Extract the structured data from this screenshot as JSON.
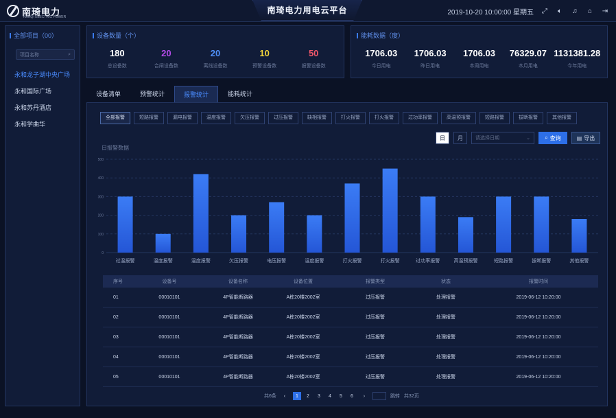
{
  "header": {
    "logo_text": "南琦电力",
    "logo_sub": "NANQI ELECTRIC POWER",
    "title": "南琦电力用电云平台",
    "datetime": "2019-10-20 10:00:00 星期五",
    "icons": [
      "fullscreen-icon",
      "volume-icon",
      "bell-icon",
      "home-icon",
      "logout-icon"
    ]
  },
  "sidebar": {
    "title": "全部项目（00）",
    "search_placeholder": "项目名称",
    "items": [
      {
        "label": "永和龙子湖中央广场",
        "active": true
      },
      {
        "label": "永和国际广场",
        "active": false
      },
      {
        "label": "永和苏丹酒店",
        "active": false
      },
      {
        "label": "永和学曲华",
        "active": false
      }
    ]
  },
  "device_stats": {
    "title": "设备数量（个）",
    "items": [
      {
        "value": "180",
        "label": "总设备数",
        "color": "#ffffff"
      },
      {
        "value": "20",
        "label": "合闸设备数",
        "color": "#b44be8"
      },
      {
        "value": "20",
        "label": "离线设备数",
        "color": "#4f8ff7"
      },
      {
        "value": "10",
        "label": "预警设备数",
        "color": "#f1d33a"
      },
      {
        "value": "50",
        "label": "报警设备数",
        "color": "#f0576a"
      }
    ]
  },
  "power_stats": {
    "title": "能耗数据（度）",
    "items": [
      {
        "value": "1706.03",
        "label": "今日用电"
      },
      {
        "value": "1706.03",
        "label": "昨日用电"
      },
      {
        "value": "1706.03",
        "label": "本周用电"
      },
      {
        "value": "76329.07",
        "label": "本月用电"
      },
      {
        "value": "1131381.28",
        "label": "今年用电"
      }
    ]
  },
  "tabs": [
    {
      "label": "设备清单",
      "active": false
    },
    {
      "label": "预警统计",
      "active": false
    },
    {
      "label": "报警统计",
      "active": true
    },
    {
      "label": "能耗统计",
      "active": false
    }
  ],
  "filters": [
    "全部报警",
    "短路报警",
    "漏电报警",
    "温度报警",
    "欠压报警",
    "过压报警",
    "缺相报警",
    "打火报警",
    "打火报警",
    "过功率报警",
    "高温预报警",
    "短路报警",
    "拔断报警",
    "其他报警"
  ],
  "controls": {
    "toggle_day": "日",
    "toggle_month": "月",
    "date_placeholder": "请选择日期",
    "query_label": "查询",
    "export_label": "导出"
  },
  "chart": {
    "title": "日报警数据"
  },
  "chart_data": {
    "type": "bar",
    "categories": [
      "过温报警",
      "温度报警",
      "温度报警",
      "欠压报警",
      "电压报警",
      "温度报警",
      "打火报警",
      "打火报警",
      "过功率报警",
      "高温预报警",
      "短路报警",
      "拔断报警",
      "其他报警"
    ],
    "values": [
      300,
      100,
      420,
      200,
      270,
      200,
      370,
      450,
      300,
      190,
      300,
      300,
      180
    ],
    "yticks": [
      "0",
      "100",
      "200",
      "300",
      "400",
      "500"
    ],
    "ylim": [
      0,
      500
    ],
    "bar_color_top": "#3b7cf5",
    "bar_color_bottom": "#2456d6",
    "grid": true
  },
  "table": {
    "headers": [
      "序号",
      "设备号",
      "设备名称",
      "设备位置",
      "报警类型",
      "状态",
      "报警时间"
    ],
    "rows": [
      [
        "01",
        "00010101",
        "4P智能断路器",
        "A栋20楼2002室",
        "过压报警",
        "处理报警",
        "2019-06-12 10:20:00"
      ],
      [
        "02",
        "00010101",
        "4P智能断路器",
        "A栋20楼2002室",
        "过压报警",
        "处理报警",
        "2019-06-12 10:20:00"
      ],
      [
        "03",
        "00010101",
        "4P智能断路器",
        "A栋20楼2002室",
        "过压报警",
        "处理报警",
        "2019-06-12 10:20:00"
      ],
      [
        "04",
        "00010101",
        "4P智能断路器",
        "A栋20楼2002室",
        "过压报警",
        "处理报警",
        "2019-06-12 10:20:00"
      ],
      [
        "05",
        "00010101",
        "4P智能断路器",
        "A栋20楼2002室",
        "过压报警",
        "处理报警",
        "2019-06-12 10:20:00"
      ]
    ]
  },
  "pager": {
    "total": "共6条",
    "pages": [
      "1",
      "2",
      "3",
      "4",
      "5",
      "6"
    ],
    "active": "1",
    "goto": "跳转",
    "total_pages": "共32页"
  }
}
